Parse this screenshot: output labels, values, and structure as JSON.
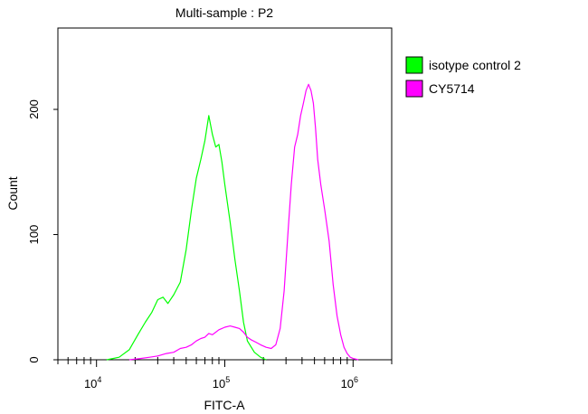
{
  "chart_data": {
    "type": "line",
    "title": "Multi-sample : P2",
    "xlabel": "FITC-A",
    "ylabel": "Count",
    "x_scale": "log",
    "xlim": [
      5000,
      2000000
    ],
    "ylim": [
      0,
      265
    ],
    "x_ticks": [
      {
        "value": 10000,
        "base": "10",
        "exp": "4"
      },
      {
        "value": 100000,
        "base": "10",
        "exp": "5"
      },
      {
        "value": 1000000,
        "base": "10",
        "exp": "6"
      }
    ],
    "y_ticks": [
      {
        "value": 0,
        "label": "0"
      },
      {
        "value": 100,
        "label": "100"
      },
      {
        "value": 200,
        "label": "200"
      }
    ],
    "legend_position": "right",
    "grid": false,
    "series": [
      {
        "name": "isotype control 2",
        "color": "#00ff00",
        "x": [
          12000,
          15000,
          18000,
          21000,
          24000,
          27000,
          30000,
          33000,
          36000,
          40000,
          45000,
          50000,
          55000,
          60000,
          65000,
          70000,
          75000,
          80000,
          85000,
          90000,
          95000,
          100000,
          110000,
          120000,
          130000,
          140000,
          150000,
          170000,
          190000,
          210000
        ],
        "values": [
          0,
          2,
          8,
          20,
          30,
          38,
          48,
          50,
          45,
          52,
          62,
          88,
          120,
          145,
          160,
          175,
          195,
          180,
          170,
          172,
          158,
          140,
          110,
          80,
          55,
          30,
          15,
          6,
          2,
          0
        ]
      },
      {
        "name": "CY5714",
        "color": "#ff00ff",
        "x": [
          18000,
          22000,
          26000,
          30000,
          35000,
          40000,
          45000,
          50000,
          55000,
          60000,
          65000,
          70000,
          75000,
          80000,
          85000,
          90000,
          95000,
          100000,
          110000,
          120000,
          130000,
          140000,
          150000,
          160000,
          175000,
          190000,
          210000,
          230000,
          250000,
          270000,
          290000,
          310000,
          330000,
          350000,
          370000,
          390000,
          410000,
          430000,
          450000,
          470000,
          490000,
          510000,
          530000,
          560000,
          600000,
          650000,
          700000,
          750000,
          800000,
          850000,
          900000,
          950000,
          1000000,
          1100000
        ],
        "values": [
          0,
          1,
          2,
          3,
          5,
          6,
          9,
          10,
          12,
          15,
          17,
          18,
          21,
          20,
          22,
          24,
          25,
          26,
          27,
          26,
          25,
          22,
          18,
          16,
          14,
          12,
          10,
          9,
          12,
          25,
          55,
          100,
          140,
          170,
          180,
          195,
          205,
          215,
          220,
          215,
          205,
          185,
          160,
          140,
          120,
          95,
          60,
          35,
          20,
          10,
          5,
          2,
          1,
          0
        ]
      }
    ]
  }
}
